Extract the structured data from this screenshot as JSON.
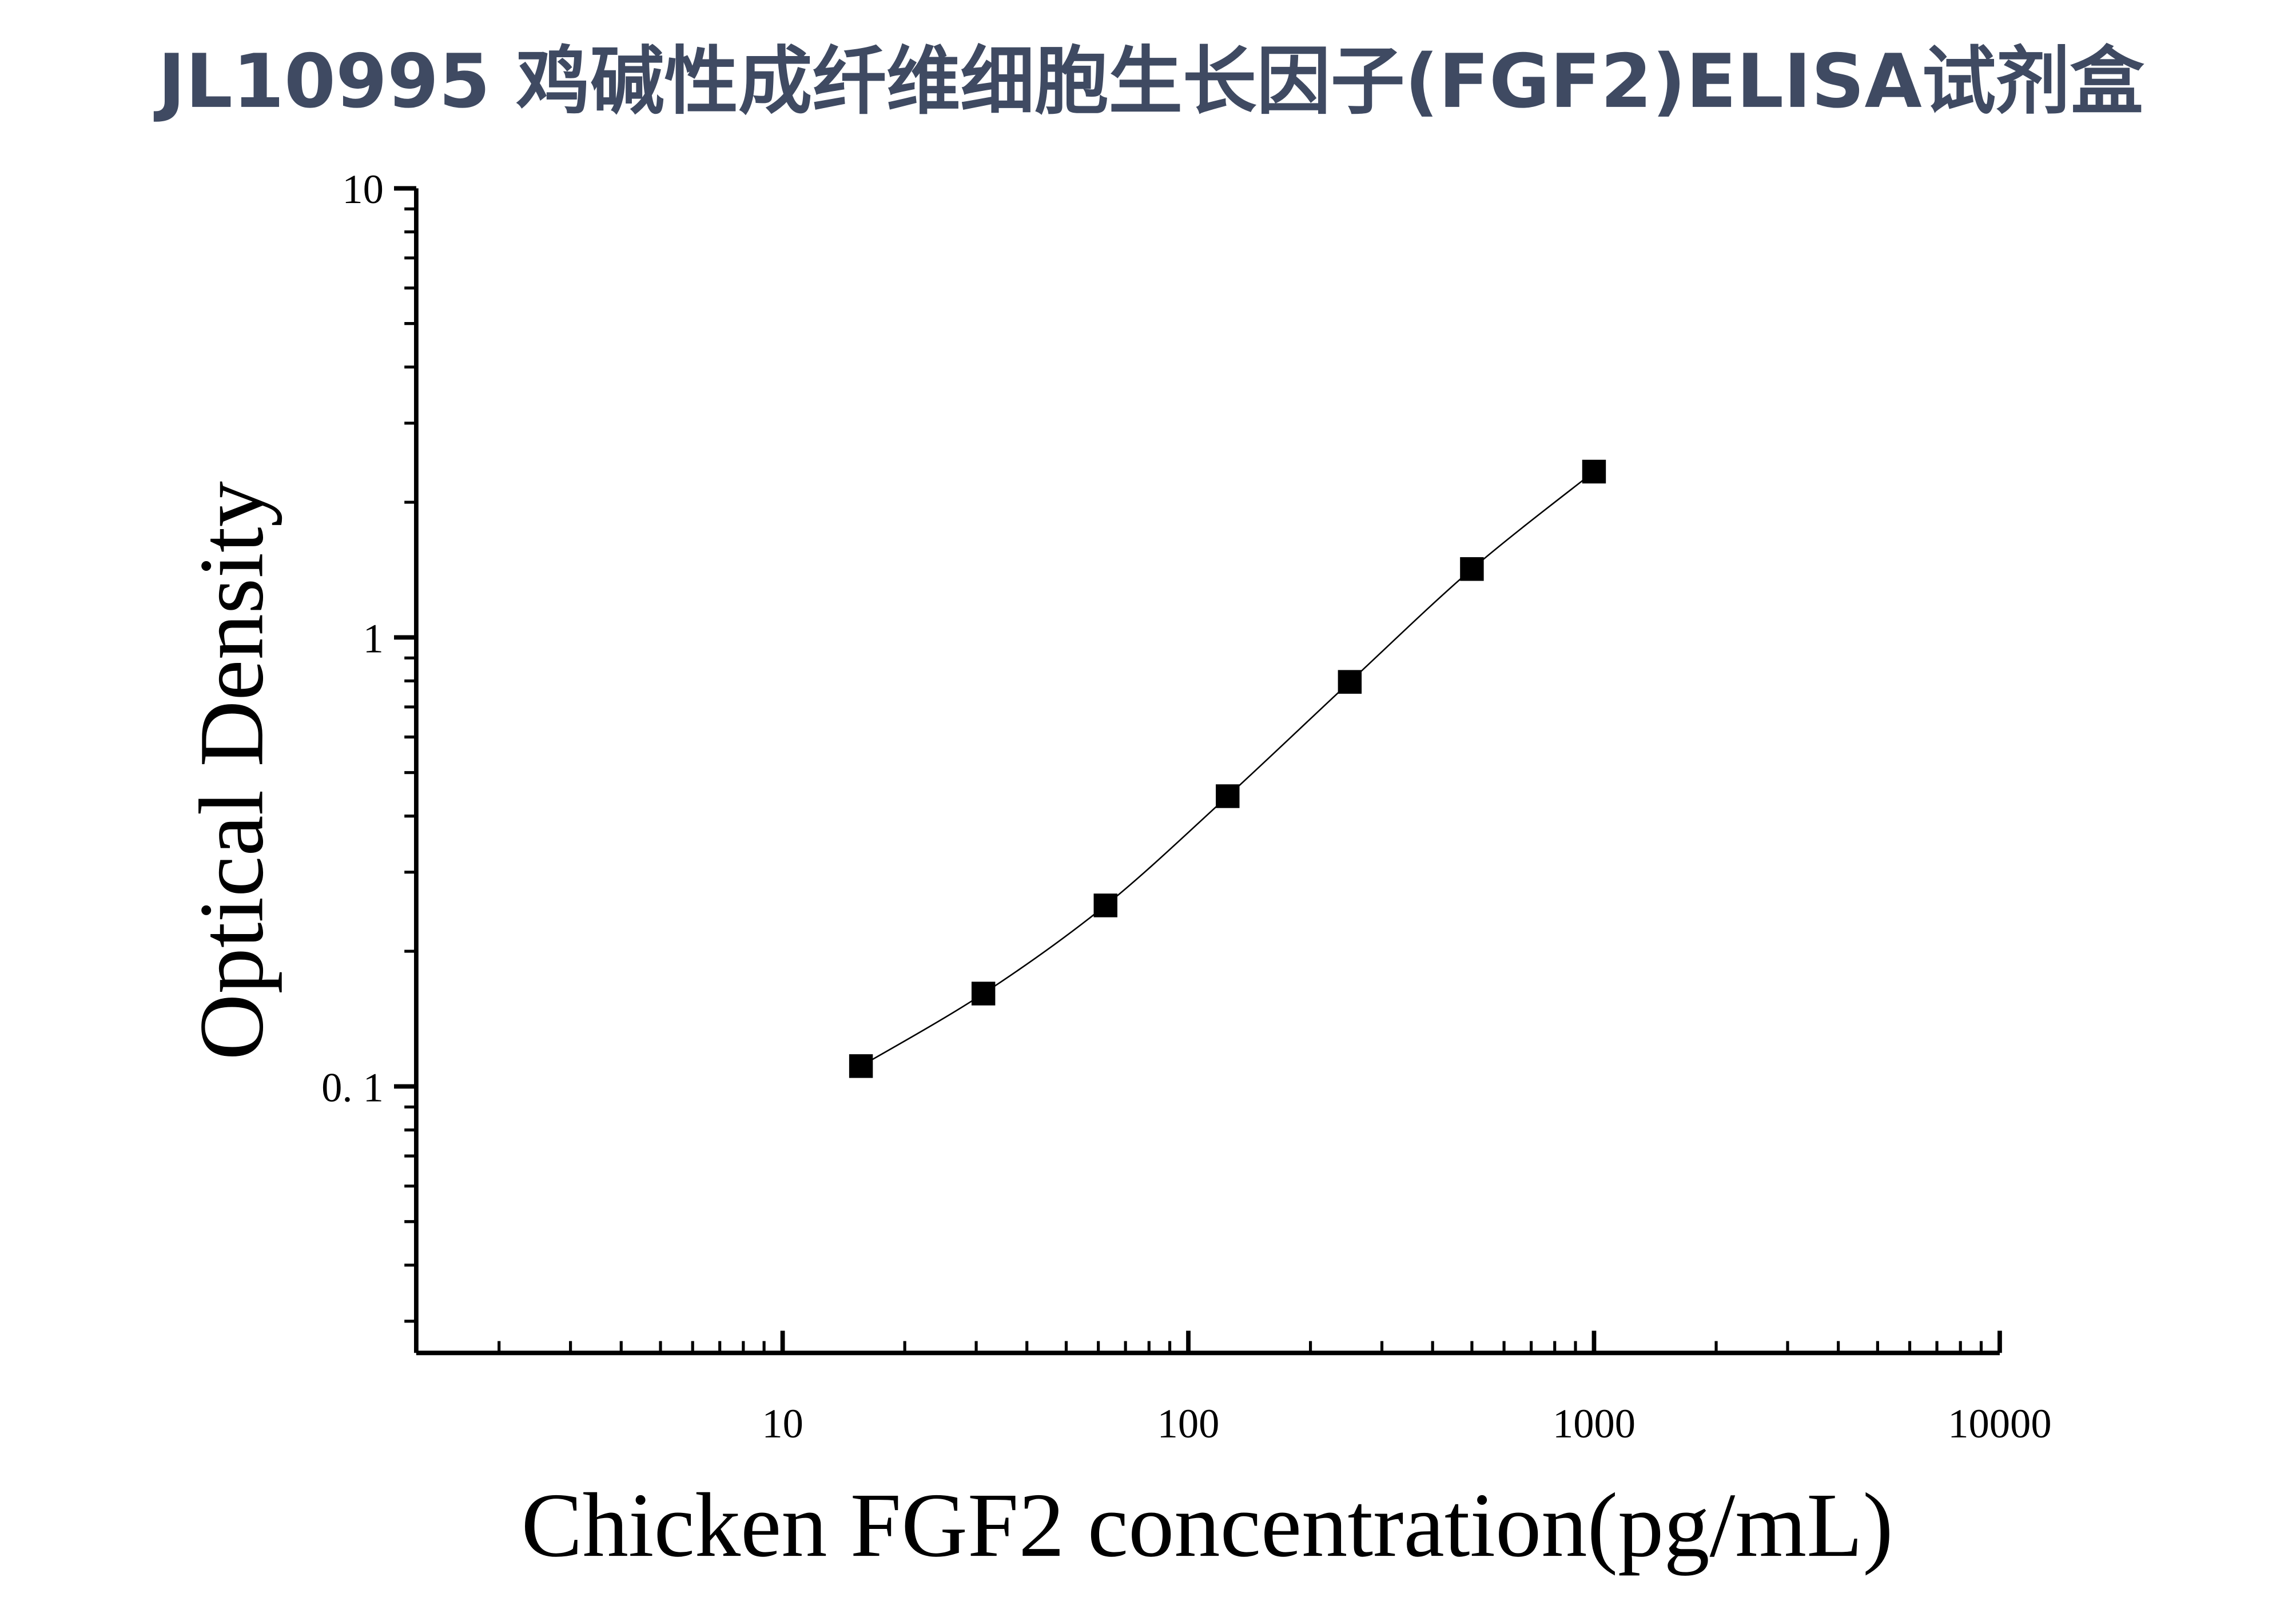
{
  "chart_data": {
    "type": "scatter",
    "title": "JL10995 鸡碱性成纤维细胞生长因子(FGF2)ELISA试剂盒",
    "x_label": "Chicken FGF2 concentration(pg/mL)",
    "y_label": "Optical Density",
    "x_log": true,
    "y_log": true,
    "xlim": [
      1.25,
      10000
    ],
    "ylim": [
      0.0255,
      10
    ],
    "xticks": [
      10,
      100,
      1000,
      10000
    ],
    "yticks": [
      {
        "value": 0.1,
        "label": "0. 1"
      },
      1,
      10
    ],
    "series": [
      {
        "color": "#000000",
        "x": [
          15.6,
          31.25,
          62.5,
          125,
          250,
          500,
          1000
        ],
        "values": [
          0.111,
          0.161,
          0.253,
          0.443,
          0.796,
          1.42,
          2.34
        ]
      }
    ]
  }
}
